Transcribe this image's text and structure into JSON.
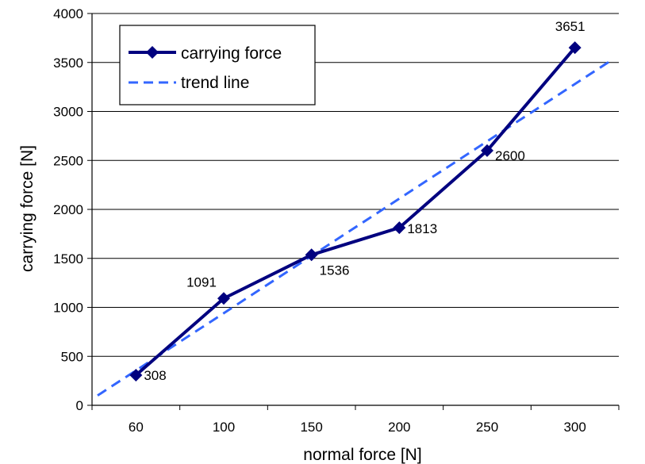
{
  "chart_data": {
    "type": "line",
    "categories": [
      "60",
      "100",
      "150",
      "200",
      "250",
      "300"
    ],
    "series": [
      {
        "name": "carrying force",
        "values": [
          308,
          1091,
          1536,
          1813,
          2600,
          3651
        ],
        "color": "#00007f",
        "marker": "diamond",
        "labels": [
          "308",
          "1091",
          "1536",
          "1813",
          "2600",
          "3651"
        ]
      }
    ],
    "trend": {
      "name": "trend line",
      "color": "#3366ff",
      "style": "dashed",
      "start_value": 100,
      "end_value": 3530
    },
    "xlabel": "normal force [N]",
    "ylabel": "carrying force [N]",
    "ylim": [
      0,
      4000
    ],
    "yticks": [
      "0",
      "500",
      "1000",
      "1500",
      "2000",
      "2500",
      "3000",
      "3500",
      "4000"
    ],
    "grid": "horizontal",
    "legend": "top-left"
  }
}
